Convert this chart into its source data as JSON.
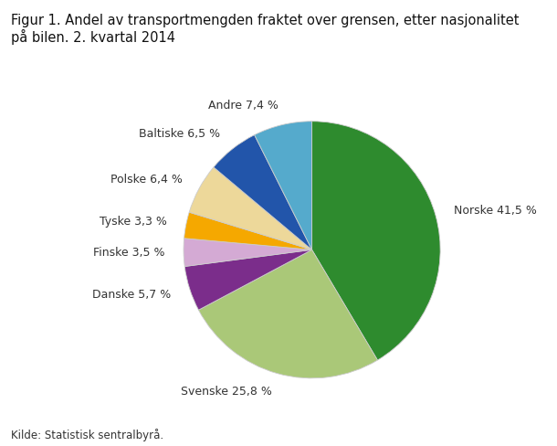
{
  "title": "Figur 1. Andel av transportmengden fraktet over grensen, etter nasjonalitet\npå bilen. 2. kvartal 2014",
  "source": "Kilde: Statistisk sentralbyrå.",
  "slices": [
    {
      "label": "Norske 41,5 %",
      "value": 41.5,
      "color": "#2e8b2e"
    },
    {
      "label": "Svenske 25,8 %",
      "value": 25.8,
      "color": "#aac878"
    },
    {
      "label": "Danske 5,7 %",
      "value": 5.7,
      "color": "#7b2d8b"
    },
    {
      "label": "Finske 3,5 %",
      "value": 3.5,
      "color": "#d4aad4"
    },
    {
      "label": "Tyske 3,3 %",
      "value": 3.3,
      "color": "#f5a800"
    },
    {
      "label": "Polske 6,4 %",
      "value": 6.4,
      "color": "#edd89a"
    },
    {
      "label": "Baltiske 6,5 %",
      "value": 6.5,
      "color": "#2255aa"
    },
    {
      "label": "Andre 7,4 %",
      "value": 7.4,
      "color": "#55aacc"
    }
  ],
  "start_angle": 90,
  "background_color": "#ffffff",
  "title_fontsize": 10.5,
  "label_fontsize": 9,
  "source_fontsize": 8.5
}
